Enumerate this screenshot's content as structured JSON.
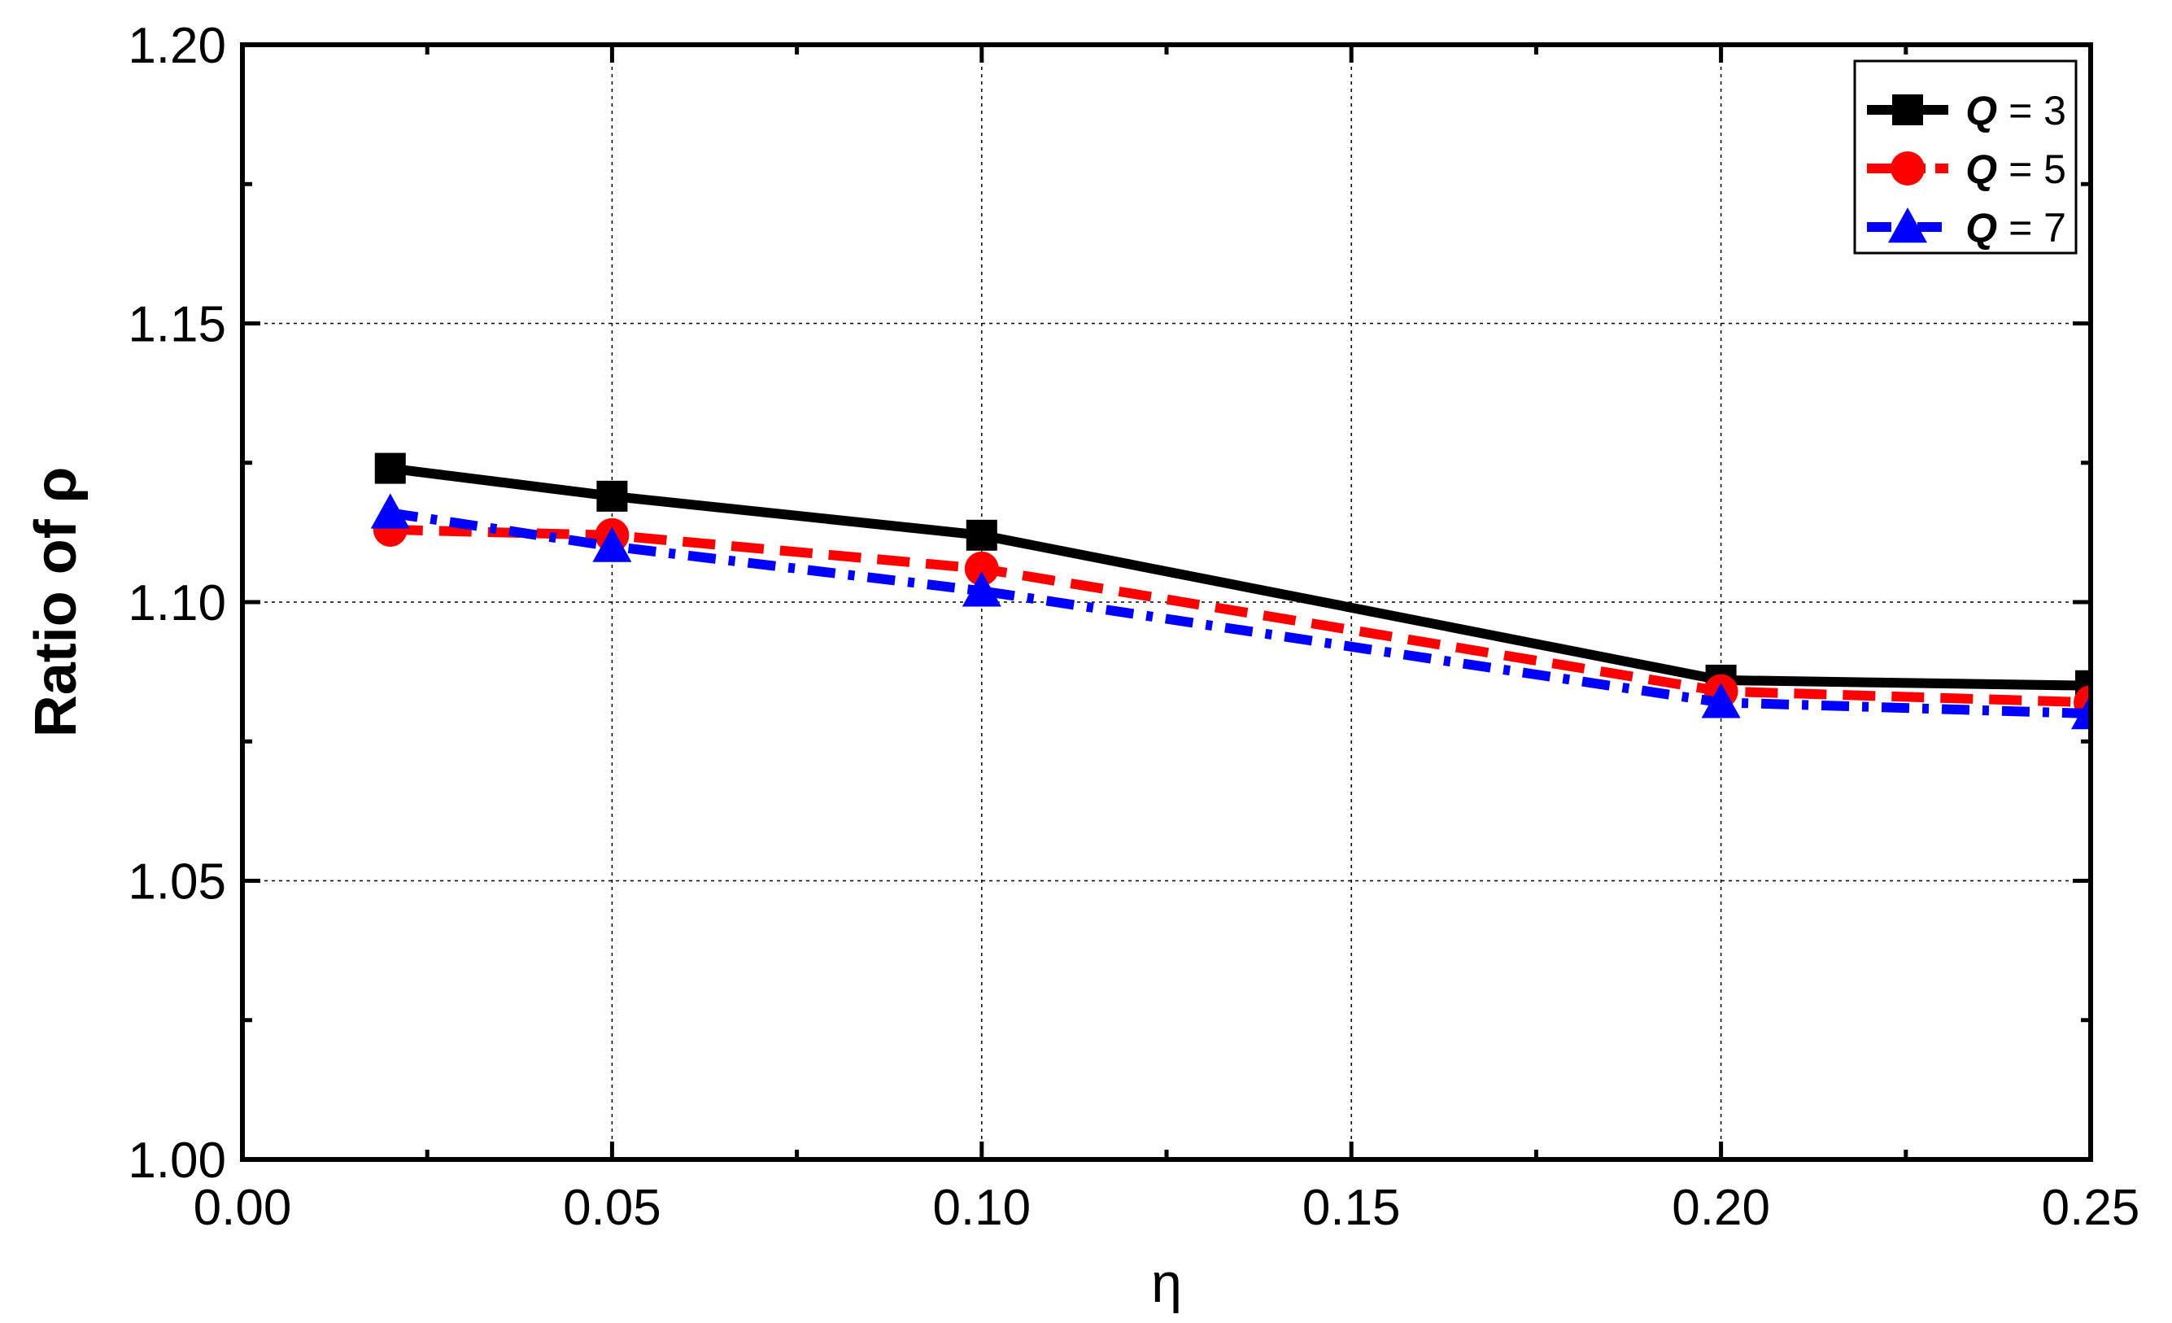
{
  "chart_data": {
    "type": "line",
    "xlabel": "η",
    "ylabel": "Ratio of ρ",
    "xlim": [
      0.0,
      0.25
    ],
    "ylim": [
      1.0,
      1.2
    ],
    "xticks": [
      0.0,
      0.05,
      0.1,
      0.15,
      0.2,
      0.25
    ],
    "xtick_labels": [
      "0.00",
      "0.05",
      "0.10",
      "0.15",
      "0.20",
      "0.25"
    ],
    "yticks": [
      1.0,
      1.05,
      1.1,
      1.15,
      1.2
    ],
    "ytick_labels": [
      "1.00",
      "1.05",
      "1.10",
      "1.15",
      "1.20"
    ],
    "grid": true,
    "legend_position": "top-right",
    "x": [
      0.02,
      0.05,
      0.1,
      0.2,
      0.25
    ],
    "series": [
      {
        "q_symbol": "Q",
        "q_value": " = 3",
        "values": [
          1.124,
          1.119,
          1.112,
          1.086,
          1.085
        ],
        "color": "#000000",
        "marker": "square",
        "line_style": "solid"
      },
      {
        "q_symbol": "Q",
        "q_value": " = 5",
        "values": [
          1.113,
          1.112,
          1.106,
          1.084,
          1.082
        ],
        "color": "#ff0000",
        "marker": "circle",
        "line_style": "dash"
      },
      {
        "q_symbol": "Q",
        "q_value": " = 7",
        "values": [
          1.116,
          1.11,
          1.102,
          1.082,
          1.08
        ],
        "color": "#0000ff",
        "marker": "triangle",
        "line_style": "dashdot"
      }
    ]
  }
}
